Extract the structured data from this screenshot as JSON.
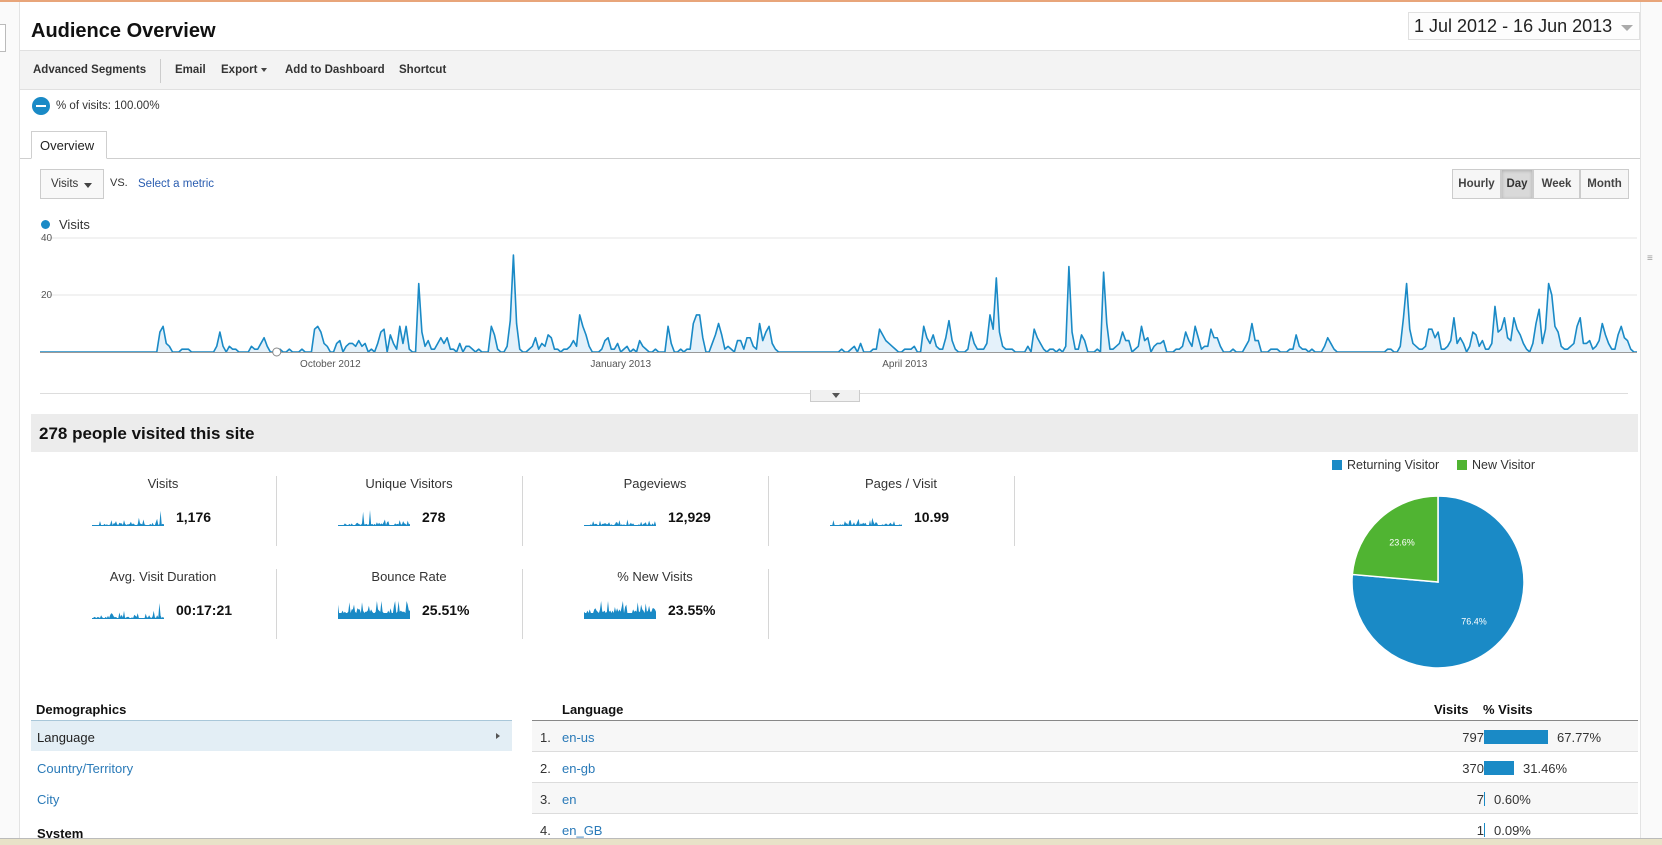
{
  "header": {
    "title": "Audience Overview",
    "date_range": "1 Jul 2012 - 16 Jun 2013"
  },
  "toolbar": {
    "advanced_segments": "Advanced Segments",
    "email": "Email",
    "export": "Export",
    "add_to_dashboard": "Add to Dashboard",
    "shortcut": "Shortcut"
  },
  "segment": {
    "text": "% of visits: 100.00%"
  },
  "tabs": {
    "overview": "Overview"
  },
  "graph_controls": {
    "metric": "Visits",
    "vs": "VS.",
    "select_metric": "Select a metric",
    "granularity": [
      "Hourly",
      "Day",
      "Week",
      "Month"
    ],
    "active_granularity": "Day"
  },
  "chart_data": {
    "type": "area",
    "series": [
      {
        "name": "Visits",
        "values": [
          0,
          0,
          0,
          0,
          0,
          0,
          0,
          0,
          0,
          0,
          0,
          0,
          0,
          0,
          0,
          0,
          0,
          0,
          0,
          0,
          0,
          0,
          0,
          0,
          0,
          0,
          0,
          0,
          0,
          0,
          0,
          0,
          0,
          0,
          0,
          0,
          0,
          0,
          7,
          9,
          3,
          2,
          0,
          0,
          0,
          1,
          1,
          1,
          0,
          0,
          0,
          0,
          0,
          0,
          0,
          0,
          2,
          7,
          2,
          0,
          2,
          1,
          1,
          0,
          0,
          0,
          0,
          2,
          1,
          1,
          3,
          5,
          2,
          0,
          0,
          0,
          1,
          0,
          0,
          1,
          0,
          0,
          0,
          1,
          0,
          0,
          0,
          8,
          9,
          7,
          3,
          2,
          0,
          0,
          3,
          4,
          0,
          2,
          3,
          3,
          2,
          4,
          2,
          3,
          0,
          1,
          0,
          3,
          7,
          8,
          0,
          6,
          3,
          1,
          9,
          3,
          9,
          1,
          0,
          0,
          24,
          7,
          2,
          4,
          1,
          1,
          3,
          5,
          3,
          5,
          1,
          1,
          0,
          3,
          0,
          2,
          2,
          1,
          0,
          1,
          0,
          0,
          0,
          9,
          6,
          1,
          0,
          0,
          2,
          11,
          34,
          10,
          1,
          0,
          0,
          1,
          2,
          5,
          1,
          3,
          2,
          6,
          5,
          1,
          1,
          0,
          1,
          1,
          2,
          4,
          2,
          13,
          9,
          6,
          2,
          0,
          0,
          0,
          1,
          4,
          5,
          1,
          1,
          3,
          0,
          1,
          2,
          0,
          1,
          0,
          4,
          2,
          1,
          0,
          0,
          1,
          0,
          0,
          0,
          9,
          3,
          0,
          0,
          1,
          0,
          1,
          1,
          10,
          13,
          13,
          5,
          0,
          0,
          3,
          6,
          10,
          6,
          1,
          2,
          1,
          0,
          4,
          4,
          1,
          5,
          5,
          2,
          1,
          10,
          4,
          7,
          9,
          3,
          1,
          0,
          0,
          0,
          0,
          0,
          0,
          0,
          0,
          0,
          0,
          0,
          0,
          0,
          0,
          0,
          0,
          0,
          0,
          0,
          0,
          1,
          0,
          0,
          1,
          2,
          0,
          3,
          0,
          0,
          0,
          1,
          1,
          8,
          6,
          4,
          3,
          2,
          1,
          0,
          0,
          1,
          1,
          1,
          2,
          0,
          0,
          9,
          5,
          3,
          6,
          2,
          1,
          1,
          5,
          11,
          4,
          1,
          0,
          0,
          0,
          1,
          7,
          3,
          1,
          1,
          1,
          3,
          13,
          8,
          26,
          7,
          2,
          1,
          1,
          1,
          0,
          0,
          0,
          0,
          2,
          0,
          8,
          5,
          3,
          1,
          0,
          1,
          1,
          0,
          1,
          0,
          2,
          30,
          7,
          1,
          1,
          6,
          4,
          0,
          0,
          0,
          1,
          0,
          28,
          10,
          1,
          1,
          2,
          3,
          7,
          4,
          4,
          0,
          1,
          2,
          9,
          4,
          5,
          0,
          2,
          3,
          3,
          4,
          0,
          0,
          0,
          1,
          1,
          2,
          7,
          4,
          2,
          9,
          5,
          1,
          2,
          2,
          8,
          5,
          5,
          2,
          0,
          0,
          0,
          1,
          0,
          0,
          0,
          2,
          4,
          10,
          4,
          4,
          0,
          0,
          0,
          1,
          1,
          1,
          0,
          0,
          0,
          1,
          1,
          6,
          2,
          1,
          1,
          0,
          1,
          0,
          0,
          0,
          2,
          5,
          3,
          1,
          0,
          0,
          0,
          0,
          0,
          0,
          0,
          0,
          0,
          0,
          0,
          0,
          0,
          0,
          0,
          0,
          1,
          1,
          0,
          0,
          2,
          12,
          24,
          8,
          3,
          2,
          1,
          1,
          2,
          8,
          8,
          5,
          7,
          1,
          1,
          2,
          4,
          12,
          3,
          5,
          3,
          0,
          2,
          7,
          6,
          2,
          4,
          1,
          1,
          3,
          16,
          7,
          8,
          12,
          5,
          4,
          12,
          8,
          6,
          3,
          1,
          0,
          3,
          10,
          15,
          3,
          8,
          24,
          20,
          9,
          7,
          2,
          1,
          1,
          2,
          3,
          9,
          12,
          3,
          3,
          4,
          1,
          2,
          4,
          10,
          6,
          3,
          1,
          1,
          6,
          9,
          5,
          4,
          1,
          0,
          0
        ]
      }
    ],
    "x_ticks": [
      "October 2012",
      "January 2013",
      "April 2013"
    ],
    "y_ticks": [
      20,
      40
    ],
    "ylim": [
      0,
      40
    ],
    "grid": true,
    "legend": "top-left"
  },
  "summary": {
    "headline": "278 people visited this site"
  },
  "stats": [
    {
      "label": "Visits",
      "value": "1,176"
    },
    {
      "label": "Unique Visitors",
      "value": "278"
    },
    {
      "label": "Pageviews",
      "value": "12,929"
    },
    {
      "label": "Pages / Visit",
      "value": "10.99"
    },
    {
      "label": "Avg. Visit Duration",
      "value": "00:17:21"
    },
    {
      "label": "Bounce Rate",
      "value": "25.51%"
    },
    {
      "label": "% New Visits",
      "value": "23.55%"
    }
  ],
  "pie": {
    "legend": [
      {
        "label": "Returning Visitor",
        "color": "#1a8ac6"
      },
      {
        "label": "New Visitor",
        "color": "#50b432"
      }
    ],
    "slices": [
      {
        "label": "76.4%",
        "value": 76.4,
        "color": "#1a8ac6"
      },
      {
        "label": "23.6%",
        "value": 23.6,
        "color": "#50b432"
      }
    ]
  },
  "demographics": {
    "title": "Demographics",
    "items": [
      "Language",
      "Country/Territory",
      "City"
    ],
    "next_section": "System"
  },
  "language_table": {
    "headers": {
      "language": "Language",
      "visits": "Visits",
      "pct_visits": "% Visits"
    },
    "rows": [
      {
        "rank": "1.",
        "language": "en-us",
        "visits": "797",
        "pct": "67.77%",
        "fraction": 0.6777
      },
      {
        "rank": "2.",
        "language": "en-gb",
        "visits": "370",
        "pct": "31.46%",
        "fraction": 0.3146
      },
      {
        "rank": "3.",
        "language": "en",
        "visits": "7",
        "pct": "0.60%",
        "fraction": 0.006
      },
      {
        "rank": "4.",
        "language": "en_GB",
        "visits": "1",
        "pct": "0.09%",
        "fraction": 0.0009
      }
    ]
  }
}
